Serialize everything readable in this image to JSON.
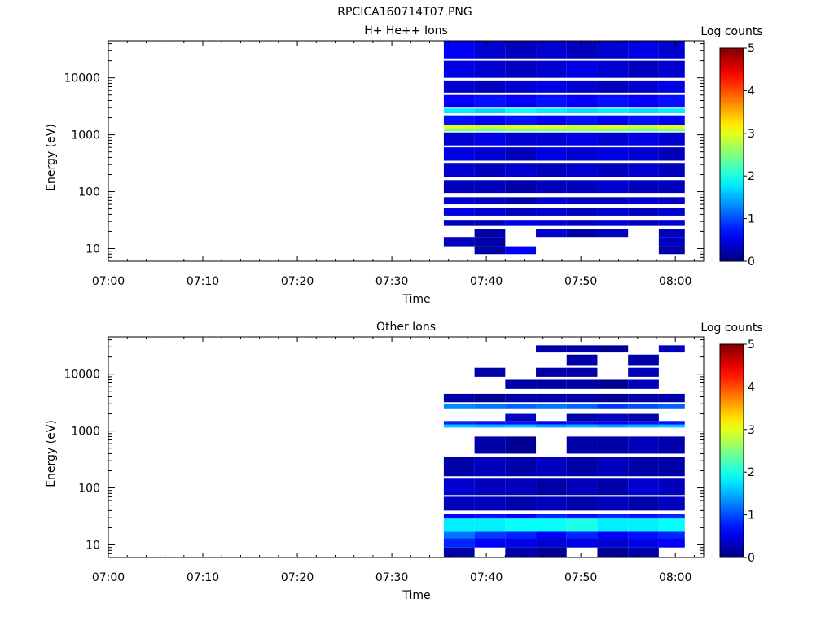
{
  "figure_title": "RPCICA160714T07.PNG",
  "chart_data": [
    {
      "type": "heatmap",
      "title": "H+ He++ Ions",
      "xlabel": "Time",
      "ylabel": "Energy (eV)",
      "x_ticks": [
        "07:00",
        "07:10",
        "07:20",
        "07:30",
        "07:40",
        "07:50",
        "08:00"
      ],
      "y_ticks": [
        "10",
        "100",
        "1000",
        "10000"
      ],
      "y_scale": "log",
      "x_range": [
        "07:00",
        "08:03"
      ],
      "y_range": [
        6,
        45000
      ],
      "colorbar": {
        "label": "Log counts",
        "range": [
          0,
          5
        ],
        "ticks": [
          "0",
          "1",
          "2",
          "3",
          "4",
          "5"
        ]
      },
      "time_columns": [
        "07:35:30",
        "07:38:45",
        "07:42:00",
        "07:45:15",
        "07:48:30",
        "07:51:45",
        "07:55:00",
        "07:58:15"
      ],
      "column_end": "08:01:00",
      "bands": [
        {
          "e": [
            8,
            11
          ],
          "v": [
            null,
            0.2,
            0.6,
            null,
            null,
            null,
            null,
            0.2
          ]
        },
        {
          "e": [
            11,
            16
          ],
          "v": [
            0.3,
            0.2,
            null,
            null,
            null,
            null,
            null,
            0.3
          ]
        },
        {
          "e": [
            16,
            22
          ],
          "v": [
            null,
            0.2,
            null,
            0.4,
            0.2,
            0.3,
            null,
            0.3
          ]
        },
        {
          "e": [
            25,
            32
          ],
          "v": [
            0.3,
            0.3,
            0.5,
            0.4,
            0.3,
            0.4,
            0.3,
            0.4
          ]
        },
        {
          "e": [
            38,
            52
          ],
          "v": [
            0.5,
            0.4,
            0.3,
            0.4,
            0.3,
            0.4,
            0.3,
            0.4
          ]
        },
        {
          "e": [
            60,
            80
          ],
          "v": [
            0.4,
            0.3,
            0.2,
            0.4,
            0.3,
            0.3,
            0.4,
            0.3
          ]
        },
        {
          "e": [
            95,
            160
          ],
          "v": [
            0.3,
            0.3,
            0.2,
            0.3,
            0.3,
            0.4,
            0.3,
            0.3
          ]
        },
        {
          "e": [
            180,
            320
          ],
          "v": [
            0.4,
            0.3,
            0.4,
            0.3,
            0.4,
            0.3,
            0.4,
            0.3
          ]
        },
        {
          "e": [
            350,
            600
          ],
          "v": [
            0.5,
            0.4,
            0.3,
            0.5,
            0.4,
            0.5,
            0.4,
            0.3
          ]
        },
        {
          "e": [
            650,
            1100
          ],
          "v": [
            0.4,
            0.5,
            0.4,
            0.4,
            0.5,
            0.4,
            0.5,
            0.4
          ]
        },
        {
          "e": [
            1150,
            1300
          ],
          "v": [
            2.5,
            2.4,
            2.5,
            2.5,
            2.6,
            2.5,
            2.4,
            2.5
          ]
        },
        {
          "e": [
            1300,
            1500
          ],
          "v": [
            3.0,
            2.9,
            3.0,
            3.0,
            2.9,
            3.0,
            2.9,
            3.0
          ]
        },
        {
          "e": [
            1500,
            2200
          ],
          "v": [
            0.7,
            0.6,
            0.7,
            0.6,
            0.7,
            0.6,
            0.7,
            0.6
          ]
        },
        {
          "e": [
            2400,
            2900
          ],
          "v": [
            1.8,
            1.7,
            1.9,
            1.8,
            1.7,
            1.8,
            1.7,
            1.8
          ]
        },
        {
          "e": [
            3000,
            5000
          ],
          "v": [
            0.6,
            0.7,
            0.6,
            0.7,
            0.6,
            0.7,
            0.6,
            0.7
          ]
        },
        {
          "e": [
            5500,
            9000
          ],
          "v": [
            0.4,
            0.3,
            0.4,
            0.5,
            0.4,
            0.3,
            0.4,
            0.5
          ]
        },
        {
          "e": [
            10000,
            20000
          ],
          "v": [
            0.5,
            0.4,
            0.3,
            0.4,
            0.5,
            0.4,
            0.3,
            0.4
          ]
        },
        {
          "e": [
            22000,
            45000
          ],
          "v": [
            0.6,
            0.4,
            0.3,
            0.4,
            0.3,
            0.4,
            0.5,
            0.4
          ]
        }
      ]
    },
    {
      "type": "heatmap",
      "title": "Other Ions",
      "xlabel": "Time",
      "ylabel": "Energy (eV)",
      "x_ticks": [
        "07:00",
        "07:10",
        "07:20",
        "07:30",
        "07:40",
        "07:50",
        "08:00"
      ],
      "y_ticks": [
        "10",
        "100",
        "1000",
        "10000"
      ],
      "y_scale": "log",
      "x_range": [
        "07:00",
        "08:03"
      ],
      "y_range": [
        6,
        45000
      ],
      "colorbar": {
        "label": "Log counts",
        "range": [
          0,
          5
        ],
        "ticks": [
          "0",
          "1",
          "2",
          "3",
          "4",
          "5"
        ]
      },
      "time_columns": [
        "07:35:30",
        "07:38:45",
        "07:42:00",
        "07:45:15",
        "07:48:30",
        "07:51:45",
        "07:55:00",
        "07:58:15"
      ],
      "column_end": "08:01:00",
      "bands": [
        {
          "e": [
            6,
            9
          ],
          "v": [
            0.2,
            null,
            0.2,
            0.1,
            null,
            0.1,
            0.2,
            null
          ]
        },
        {
          "e": [
            9,
            13
          ],
          "v": [
            0.8,
            0.6,
            0.5,
            0.4,
            0.5,
            0.4,
            0.5,
            0.6
          ]
        },
        {
          "e": [
            13,
            17
          ],
          "v": [
            1.2,
            0.9,
            0.8,
            0.6,
            0.8,
            0.6,
            0.7,
            0.8
          ]
        },
        {
          "e": [
            17,
            29
          ],
          "v": [
            1.8,
            1.8,
            1.9,
            1.9,
            2.0,
            1.8,
            1.8,
            1.9
          ]
        },
        {
          "e": [
            29,
            35
          ],
          "v": [
            0.6,
            0.7,
            0.6,
            0.8,
            0.7,
            0.8,
            0.7,
            0.8
          ]
        },
        {
          "e": [
            40,
            70
          ],
          "v": [
            0.3,
            0.3,
            0.2,
            0.3,
            0.2,
            0.3,
            0.2,
            0.3
          ]
        },
        {
          "e": [
            75,
            150
          ],
          "v": [
            0.4,
            0.3,
            0.3,
            0.2,
            0.3,
            0.2,
            0.4,
            0.3
          ]
        },
        {
          "e": [
            160,
            350
          ],
          "v": [
            0.2,
            0.3,
            0.2,
            0.3,
            0.2,
            0.3,
            0.2,
            0.2
          ]
        },
        {
          "e": [
            400,
            800
          ],
          "v": [
            null,
            0.2,
            0.1,
            null,
            0.2,
            0.2,
            0.3,
            0.2
          ]
        },
        {
          "e": [
            1150,
            1300
          ],
          "v": [
            1.6,
            1.5,
            1.6,
            1.4,
            1.5,
            1.4,
            1.5,
            1.6
          ]
        },
        {
          "e": [
            1300,
            1500
          ],
          "v": [
            0.8,
            0.7,
            0.7,
            0.6,
            0.7,
            0.6,
            0.7,
            0.7
          ]
        },
        {
          "e": [
            1500,
            2000
          ],
          "v": [
            null,
            null,
            0.3,
            null,
            0.2,
            0.3,
            0.2,
            null
          ]
        },
        {
          "e": [
            2500,
            3000
          ],
          "v": [
            1.3,
            1.2,
            1.1,
            1.2,
            1.1,
            0.9,
            1.0,
            1.1
          ]
        },
        {
          "e": [
            3200,
            4500
          ],
          "v": [
            0.2,
            0.1,
            0.2,
            0.2,
            0.2,
            0.1,
            0.2,
            0.2
          ]
        },
        {
          "e": [
            5500,
            8000
          ],
          "v": [
            null,
            null,
            0.2,
            0.2,
            0.2,
            0.1,
            0.3,
            null
          ]
        },
        {
          "e": [
            9000,
            13000
          ],
          "v": [
            null,
            0.2,
            null,
            0.2,
            0.2,
            null,
            0.3,
            null
          ]
        },
        {
          "e": [
            14000,
            22000
          ],
          "v": [
            null,
            null,
            null,
            null,
            0.2,
            null,
            0.2,
            null
          ]
        },
        {
          "e": [
            24000,
            32000
          ],
          "v": [
            null,
            null,
            null,
            0.2,
            0.2,
            0.1,
            null,
            0.3
          ]
        }
      ]
    }
  ]
}
